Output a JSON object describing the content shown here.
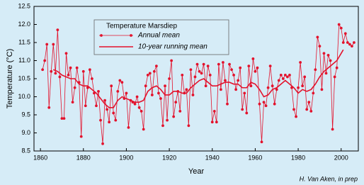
{
  "chart_data": {
    "type": "line",
    "xlabel": "Year",
    "ylabel": "Temperature (°C)",
    "legend_title": "Temperature Marsdiep",
    "credit": "H. Van Aken, in prep",
    "xlim": [
      1857,
      2008
    ],
    "ylim": [
      8.5,
      12.5
    ],
    "xticks": [
      1860,
      1880,
      1900,
      1920,
      1940,
      1960,
      1980,
      2000
    ],
    "yticks": [
      {
        "value": 8.5,
        "label": "8.5"
      },
      {
        "value": 9,
        "label": "9.0"
      },
      {
        "value": 9.5,
        "label": "9.5"
      },
      {
        "value": 10,
        "label": "10.0"
      },
      {
        "value": 10.5,
        "label": "10.5"
      },
      {
        "value": 11,
        "label": "11.0"
      },
      {
        "value": 11.5,
        "label": "11.5"
      },
      {
        "value": 12,
        "label": "12.0"
      },
      {
        "value": 12.5,
        "label": "12.5"
      }
    ],
    "grid": false,
    "series": [
      {
        "name": "Annual mean",
        "color": "#e3122c",
        "markers": true,
        "x": [
          1861,
          1862,
          1863,
          1864,
          1865,
          1866,
          1867,
          1868,
          1869,
          1870,
          1871,
          1872,
          1873,
          1874,
          1875,
          1876,
          1877,
          1878,
          1879,
          1880,
          1881,
          1882,
          1883,
          1884,
          1885,
          1886,
          1887,
          1888,
          1889,
          1890,
          1891,
          1892,
          1893,
          1894,
          1895,
          1896,
          1897,
          1898,
          1899,
          1900,
          1901,
          1902,
          1903,
          1904,
          1905,
          1906,
          1907,
          1908,
          1909,
          1910,
          1911,
          1912,
          1913,
          1914,
          1915,
          1916,
          1917,
          1918,
          1919,
          1920,
          1921,
          1922,
          1923,
          1924,
          1925,
          1926,
          1927,
          1928,
          1929,
          1930,
          1931,
          1932,
          1933,
          1934,
          1935,
          1936,
          1937,
          1938,
          1939,
          1940,
          1941,
          1942,
          1943,
          1944,
          1945,
          1946,
          1947,
          1948,
          1949,
          1950,
          1951,
          1952,
          1953,
          1954,
          1955,
          1956,
          1957,
          1958,
          1959,
          1960,
          1961,
          1962,
          1963,
          1964,
          1965,
          1966,
          1967,
          1968,
          1969,
          1970,
          1971,
          1972,
          1973,
          1974,
          1975,
          1976,
          1977,
          1978,
          1979,
          1980,
          1981,
          1982,
          1983,
          1984,
          1985,
          1986,
          1987,
          1988,
          1989,
          1990,
          1991,
          1992,
          1993,
          1994,
          1995,
          1996,
          1997,
          1998,
          1999,
          2000,
          2001,
          2002,
          2003,
          2004,
          2005,
          2006
        ],
        "values": [
          10.75,
          11.0,
          11.45,
          9.7,
          10.7,
          11.45,
          10.65,
          11.85,
          10.55,
          9.4,
          9.4,
          11.2,
          10.6,
          10.8,
          9.85,
          10.25,
          10.8,
          10.4,
          8.9,
          10.7,
          9.75,
          10.25,
          10.75,
          10.5,
          10.1,
          9.75,
          10.15,
          9.35,
          8.7,
          9.9,
          9.65,
          9.3,
          10.3,
          9.55,
          9.35,
          10.15,
          10.45,
          10.4,
          9.95,
          10.1,
          9.15,
          9.9,
          9.85,
          9.8,
          10.0,
          9.7,
          9.6,
          9.1,
          10.3,
          10.6,
          10.65,
          10.05,
          10.7,
          10.85,
          10.1,
          9.95,
          9.2,
          10.3,
          9.35,
          10.5,
          11.0,
          9.45,
          9.85,
          10.15,
          9.6,
          10.6,
          10.1,
          10.2,
          9.2,
          10.75,
          10.05,
          10.55,
          10.9,
          10.7,
          10.65,
          10.9,
          10.3,
          10.85,
          10.6,
          9.3,
          9.6,
          9.3,
          10.9,
          10.2,
          10.95,
          10.45,
          9.8,
          10.9,
          10.75,
          10.6,
          10.2,
          10.45,
          10.8,
          9.65,
          10.1,
          9.55,
          10.85,
          10.3,
          11.05,
          10.7,
          10.8,
          9.8,
          8.75,
          9.85,
          9.75,
          10.25,
          10.85,
          10.3,
          9.8,
          10.2,
          10.45,
          10.6,
          10.5,
          10.6,
          10.55,
          10.6,
          10.25,
          9.65,
          9.45,
          10.25,
          10.95,
          10.3,
          10.55,
          9.65,
          9.85,
          9.6,
          10.1,
          10.75,
          11.65,
          11.4,
          10.2,
          11.2,
          10.65,
          11.15,
          11.0,
          9.1,
          10.55,
          10.8,
          12.0,
          11.9,
          11.5,
          11.75,
          11.5,
          11.45,
          11.4,
          11.5
        ]
      },
      {
        "name": "10-year running mean",
        "color": "#e3122c",
        "markers": false,
        "x": [
          1866,
          1868,
          1870,
          1872,
          1874,
          1876,
          1878,
          1880,
          1882,
          1884,
          1886,
          1888,
          1890,
          1892,
          1894,
          1896,
          1898,
          1900,
          1902,
          1904,
          1906,
          1908,
          1910,
          1912,
          1914,
          1916,
          1918,
          1920,
          1922,
          1924,
          1926,
          1928,
          1930,
          1932,
          1934,
          1936,
          1938,
          1940,
          1942,
          1944,
          1946,
          1948,
          1950,
          1952,
          1954,
          1956,
          1958,
          1960,
          1962,
          1964,
          1966,
          1968,
          1970,
          1972,
          1974,
          1976,
          1978,
          1980,
          1982,
          1984,
          1986,
          1988,
          1990,
          1992,
          1994,
          1996,
          1998,
          2000,
          2001
        ],
        "values": [
          10.75,
          10.7,
          10.6,
          10.55,
          10.5,
          10.5,
          10.35,
          10.3,
          10.3,
          10.2,
          10.1,
          9.95,
          9.8,
          9.7,
          9.7,
          9.9,
          10.0,
          9.95,
          9.9,
          9.85,
          9.85,
          9.9,
          10.15,
          10.25,
          10.3,
          10.2,
          10.05,
          10.05,
          10.15,
          10.15,
          10.1,
          10.1,
          10.25,
          10.35,
          10.45,
          10.5,
          10.4,
          10.3,
          10.3,
          10.35,
          10.4,
          10.4,
          10.35,
          10.35,
          10.25,
          10.25,
          10.4,
          10.35,
          10.2,
          10.0,
          10.05,
          10.2,
          10.25,
          10.35,
          10.45,
          10.35,
          10.25,
          10.1,
          10.2,
          10.15,
          10.2,
          10.35,
          10.55,
          10.7,
          10.8,
          10.9,
          11.0,
          11.2,
          11.3
        ]
      }
    ]
  }
}
